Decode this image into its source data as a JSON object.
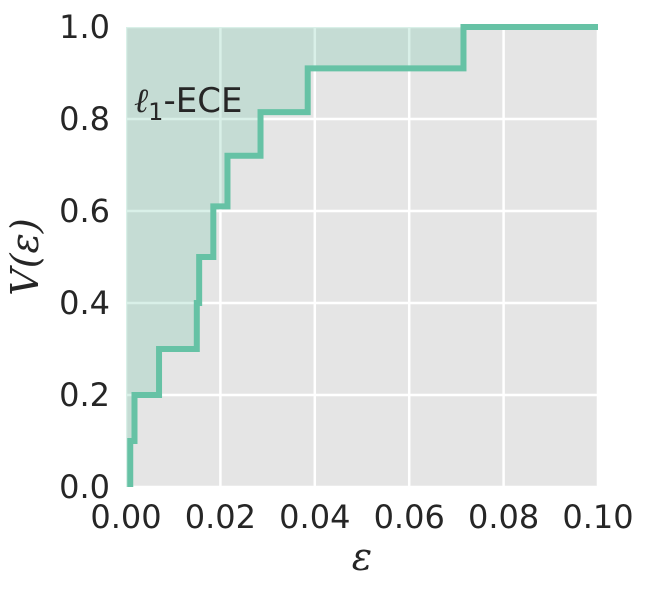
{
  "chart_data": {
    "type": "line",
    "subtype": "step",
    "title": "",
    "xlabel": "ε",
    "ylabel": "V(ε)",
    "annotation": "ℓ1-ECE",
    "xlim": [
      0.0,
      0.1
    ],
    "ylim": [
      0.0,
      1.0
    ],
    "xticks": [
      "0.00",
      "0.02",
      "0.04",
      "0.06",
      "0.08",
      "0.10"
    ],
    "yticks": [
      "0.0",
      "0.2",
      "0.4",
      "0.6",
      "0.8",
      "1.0"
    ],
    "grid": true,
    "fill_above_curve": true,
    "colors": {
      "line": "#66c2a5",
      "fill": "#66c2a5",
      "background": "#e5e5e5",
      "grid": "#ffffff"
    },
    "series": [
      {
        "x": [
          0.0009,
          0.0018,
          0.002,
          0.007,
          0.015,
          0.0155,
          0.0185,
          0.0195,
          0.0215,
          0.0285,
          0.0385,
          0.0715,
          0.1
        ],
        "y": [
          0.1,
          0.2,
          0.2,
          0.3,
          0.4,
          0.5,
          0.61,
          0.61,
          0.72,
          0.815,
          0.91,
          1.0,
          1.0
        ],
        "x_start": 0.0009,
        "y_start": 0.0
      }
    ]
  }
}
